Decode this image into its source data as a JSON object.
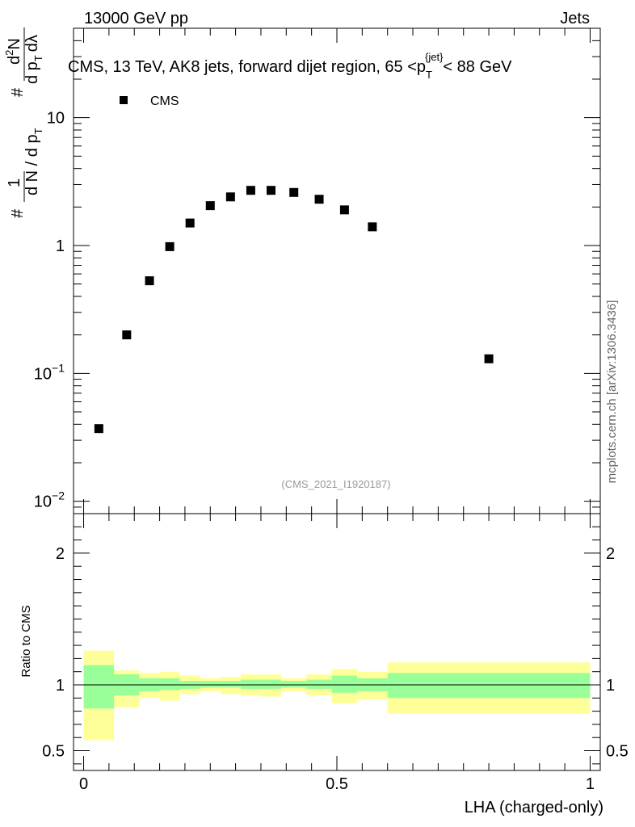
{
  "header": {
    "energy_label": "13000 GeV pp",
    "category_label": "Jets"
  },
  "watermark": "mcplots.cern.ch [arXiv:1306.3436]",
  "analysis_id": "(CMS_2021_I1920187)",
  "colors": {
    "band_inner": "#99ff99",
    "band_outer": "#ffff99",
    "marker": "#000000"
  },
  "chart_data": [
    {
      "type": "scatter",
      "title": "CMS, 13 TeV, AK8 jets, forward dijet region, 65 <p_T^{jet}< 88 GeV",
      "title_parts": {
        "prefix": "CMS, 13 TeV, AK8 jets, forward dijet region, 65 <p",
        "sub": "T",
        "sup": "{jet}",
        "suffix": "< 88 GeV"
      },
      "ylabel_parts": {
        "first": "1",
        "sharp": "#",
        "dN": "d N / d p",
        "T": "T",
        "d2N_top": "d",
        "d2N_exp": "2",
        "d2N_N": "N",
        "den": "d p",
        "den_T": "T",
        "lambda": "dλ"
      },
      "yscale": "log",
      "ylim": [
        0.008,
        50
      ],
      "xlim": [
        -0.02,
        1.02
      ],
      "yticks": [
        {
          "value": 0.01,
          "base": "10",
          "exp": "−2"
        },
        {
          "value": 0.1,
          "base": "10",
          "exp": "−1"
        },
        {
          "value": 1,
          "base": "1",
          "exp": ""
        },
        {
          "value": 10,
          "base": "10",
          "exp": ""
        }
      ],
      "legend": [
        {
          "name": "CMS",
          "marker": "square",
          "position": "top-left"
        }
      ],
      "series": [
        {
          "name": "CMS",
          "x": [
            0.03,
            0.085,
            0.13,
            0.17,
            0.21,
            0.25,
            0.29,
            0.33,
            0.37,
            0.415,
            0.465,
            0.515,
            0.57,
            0.8
          ],
          "y": [
            0.037,
            0.2,
            0.53,
            0.98,
            1.5,
            2.05,
            2.4,
            2.7,
            2.7,
            2.6,
            2.3,
            1.9,
            1.4,
            0.13
          ]
        }
      ]
    },
    {
      "type": "area",
      "ylabel": "Ratio to CMS",
      "xlabel": "LHA (charged-only)",
      "xlim": [
        -0.02,
        1.02
      ],
      "ylim": [
        0.35,
        2.3
      ],
      "xticks": [
        {
          "value": 0,
          "label": "0"
        },
        {
          "value": 0.5,
          "label": "0.5"
        },
        {
          "value": 1,
          "label": "1"
        }
      ],
      "yticks": [
        {
          "value": 0.5,
          "label": "0.5"
        },
        {
          "value": 1,
          "label": "1"
        },
        {
          "value": 2,
          "label": "2"
        }
      ],
      "reference_line": 1,
      "bins": [
        {
          "lo": 0.0,
          "hi": 0.06,
          "inner": [
            0.82,
            1.15
          ],
          "outer": [
            0.58,
            1.26
          ]
        },
        {
          "lo": 0.06,
          "hi": 0.11,
          "inner": [
            0.92,
            1.08
          ],
          "outer": [
            0.83,
            1.11
          ]
        },
        {
          "lo": 0.11,
          "hi": 0.15,
          "inner": [
            0.95,
            1.05
          ],
          "outer": [
            0.9,
            1.09
          ]
        },
        {
          "lo": 0.15,
          "hi": 0.19,
          "inner": [
            0.96,
            1.05
          ],
          "outer": [
            0.88,
            1.1
          ]
        },
        {
          "lo": 0.19,
          "hi": 0.23,
          "inner": [
            0.97,
            1.03
          ],
          "outer": [
            0.93,
            1.07
          ]
        },
        {
          "lo": 0.23,
          "hi": 0.27,
          "inner": [
            0.98,
            1.03
          ],
          "outer": [
            0.95,
            1.05
          ]
        },
        {
          "lo": 0.27,
          "hi": 0.31,
          "inner": [
            0.98,
            1.03
          ],
          "outer": [
            0.93,
            1.06
          ]
        },
        {
          "lo": 0.31,
          "hi": 0.35,
          "inner": [
            0.97,
            1.04
          ],
          "outer": [
            0.92,
            1.08
          ]
        },
        {
          "lo": 0.35,
          "hi": 0.39,
          "inner": [
            0.97,
            1.04
          ],
          "outer": [
            0.91,
            1.08
          ]
        },
        {
          "lo": 0.39,
          "hi": 0.44,
          "inner": [
            0.98,
            1.03
          ],
          "outer": [
            0.95,
            1.05
          ]
        },
        {
          "lo": 0.44,
          "hi": 0.49,
          "inner": [
            0.97,
            1.04
          ],
          "outer": [
            0.92,
            1.08
          ]
        },
        {
          "lo": 0.49,
          "hi": 0.54,
          "inner": [
            0.94,
            1.07
          ],
          "outer": [
            0.86,
            1.12
          ]
        },
        {
          "lo": 0.54,
          "hi": 0.6,
          "inner": [
            0.95,
            1.05
          ],
          "outer": [
            0.89,
            1.1
          ]
        },
        {
          "lo": 0.6,
          "hi": 1.0,
          "inner": [
            0.9,
            1.09
          ],
          "outer": [
            0.78,
            1.17
          ]
        }
      ]
    }
  ]
}
